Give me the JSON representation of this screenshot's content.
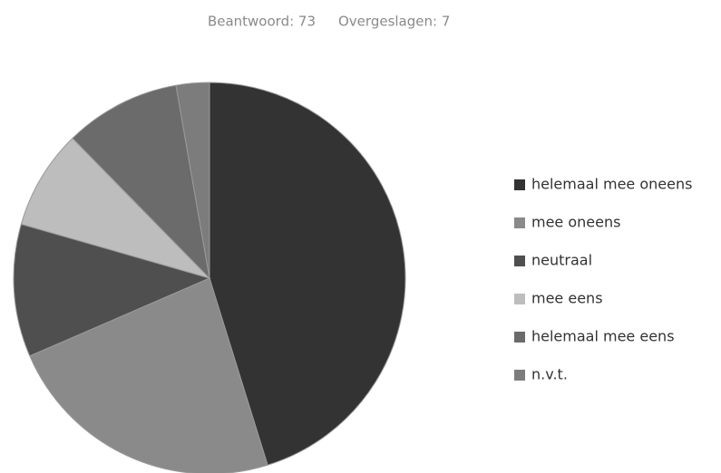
{
  "chart_data": {
    "type": "pie",
    "title": "Beantwoord: 73",
    "subtitle": "Overgeslagen: 7",
    "categories": [
      "helemaal mee oneens",
      "mee oneens",
      "neutraal",
      "mee eens",
      "helemaal mee eens",
      "n.v.t."
    ],
    "values": [
      33,
      17,
      8,
      6,
      7,
      2
    ],
    "colors": [
      "#333333",
      "#8a8a8a",
      "#4f4f4f",
      "#bdbdbd",
      "#6b6b6b",
      "#7c7c7c"
    ],
    "legend": "right"
  }
}
